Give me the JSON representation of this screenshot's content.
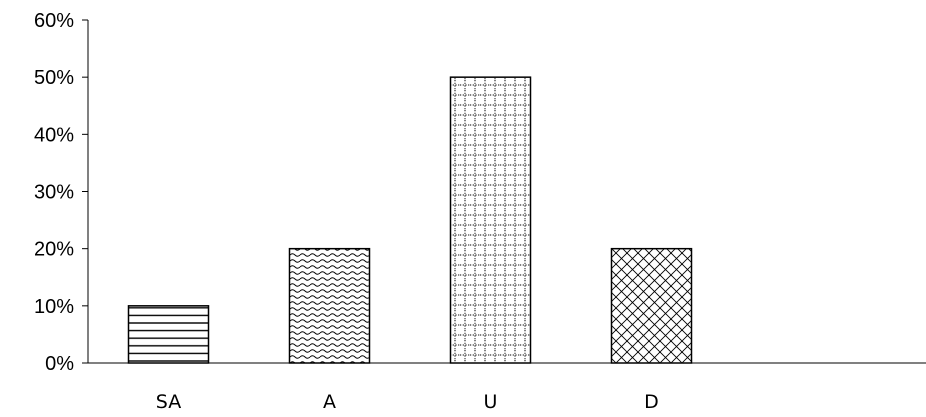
{
  "chart_data": {
    "type": "bar",
    "categories": [
      "SA",
      "A",
      "U",
      "D"
    ],
    "values": [
      10,
      20,
      50,
      20
    ],
    "value_format": "percent",
    "y_ticks": [
      "0%",
      "10%",
      "20%",
      "30%",
      "40%",
      "50%",
      "60%"
    ],
    "ylim": [
      0,
      60
    ],
    "title": "",
    "xlabel": "",
    "ylabel": "",
    "grid": false,
    "legend": "none",
    "bar_fill_patterns": [
      "horizontal-lines",
      "wave",
      "dotted-grid",
      "diagonal-cross"
    ],
    "colors": {
      "bar_stroke": "#000000",
      "pattern_ink": "#000000",
      "background": "#ffffff"
    }
  }
}
